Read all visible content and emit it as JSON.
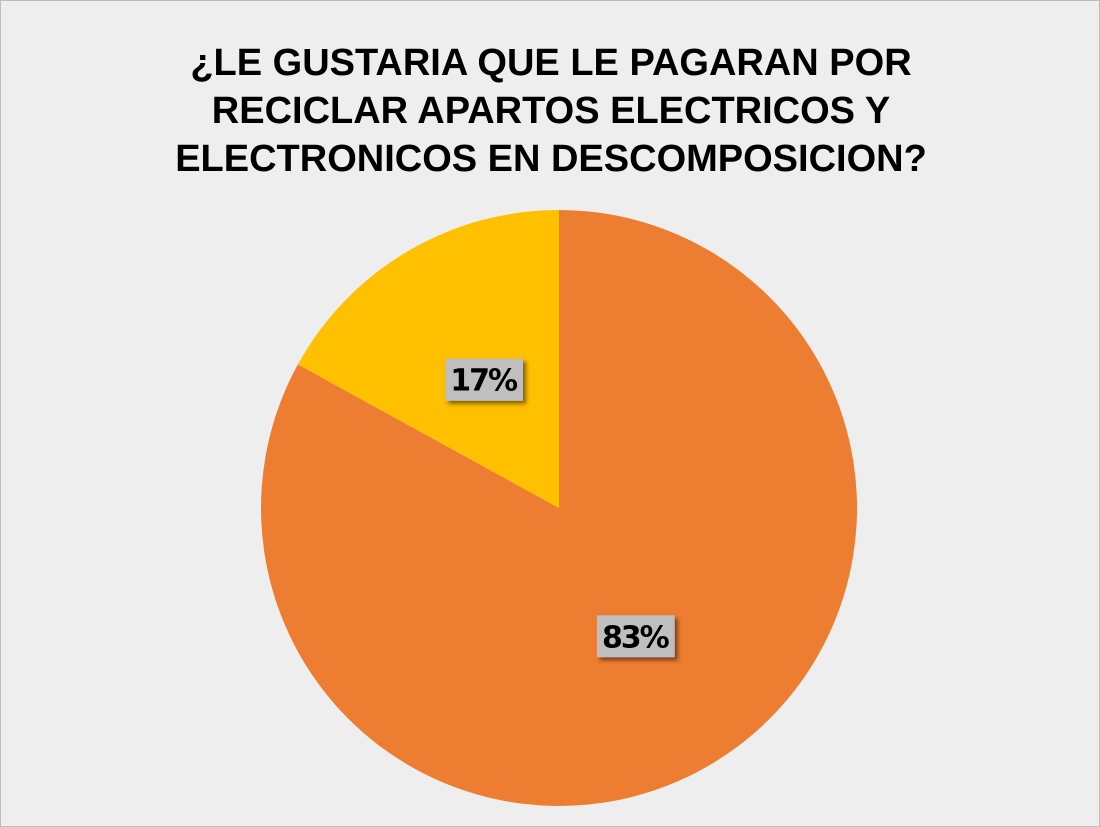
{
  "chart_data": {
    "type": "pie",
    "title": "¿LE GUSTARIA QUE LE PAGARAN POR RECICLAR APARTOS ELECTRICOS Y ELECTRONICOS EN DESCOMPOSICION?",
    "values": [
      83,
      17
    ],
    "value_labels": [
      "83%",
      "17%"
    ],
    "colors": [
      "#ed7d31",
      "#ffc000"
    ]
  }
}
